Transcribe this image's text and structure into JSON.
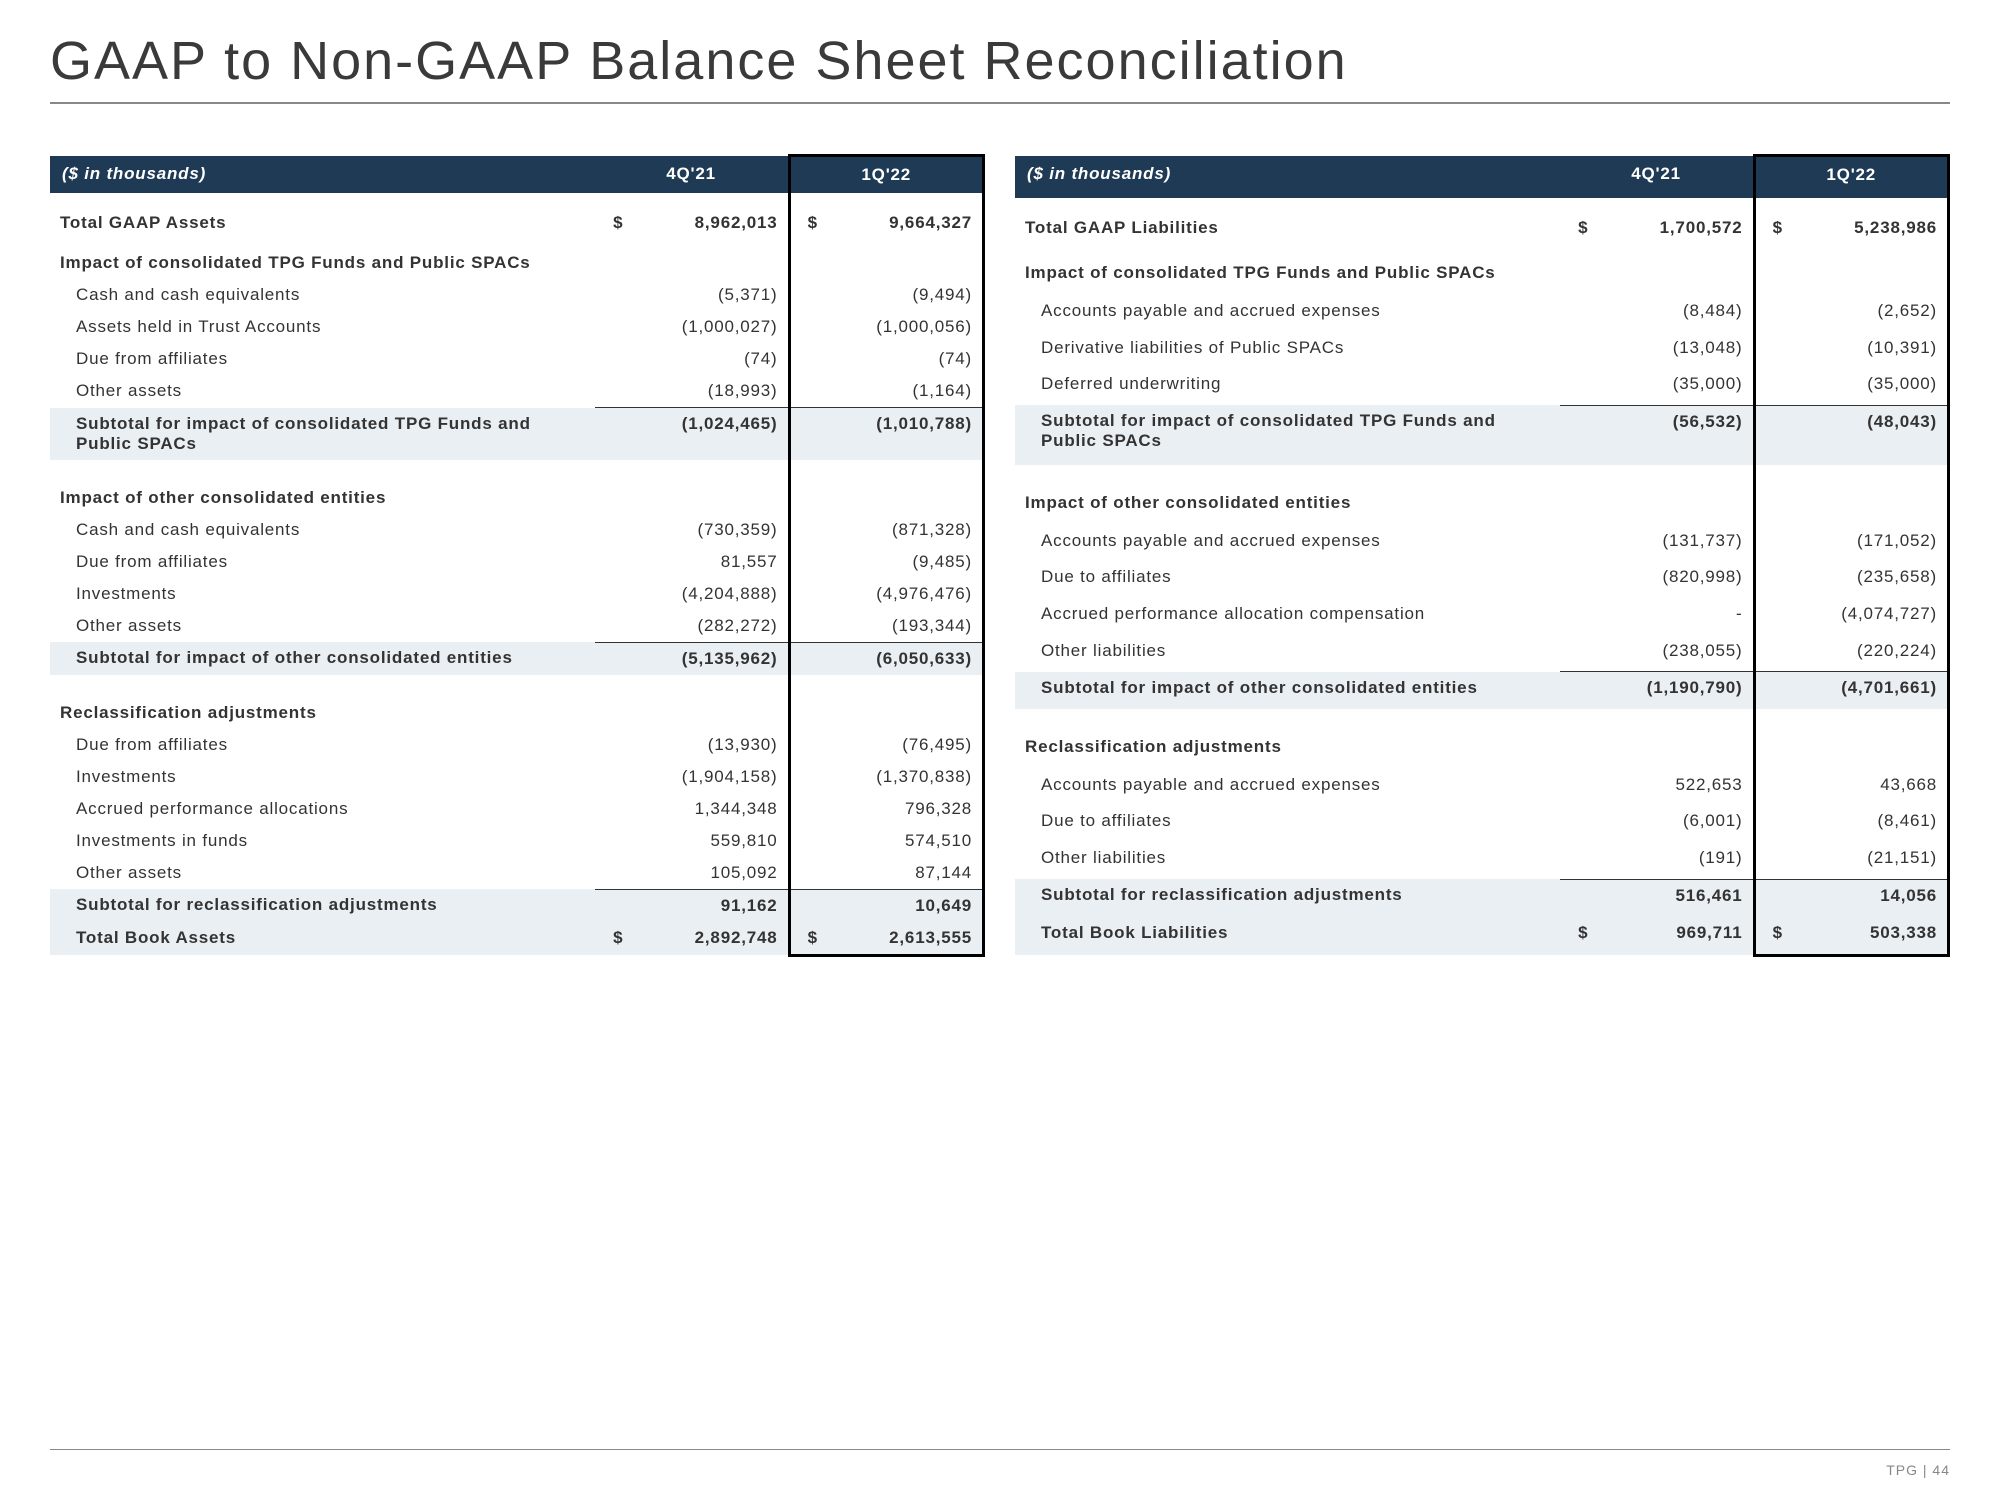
{
  "title": "GAAP to Non-GAAP Balance Sheet Reconciliation",
  "footer": "TPG | 44",
  "periods": {
    "p1": "4Q'21",
    "p2": "1Q'22"
  },
  "unit_label": "($ in thousands)",
  "assets": {
    "total_gaap": {
      "label": "Total GAAP Assets",
      "p1": "8,962,013",
      "p2": "9,664,327"
    },
    "sec1": {
      "title": "Impact of consolidated TPG Funds and Public SPACs",
      "rows": [
        {
          "label": "Cash and cash equivalents",
          "p1": "(5,371)",
          "p2": "(9,494)"
        },
        {
          "label": "Assets held in Trust Accounts",
          "p1": "(1,000,027)",
          "p2": "(1,000,056)"
        },
        {
          "label": "Due from affiliates",
          "p1": "(74)",
          "p2": "(74)"
        },
        {
          "label": "Other assets",
          "p1": "(18,993)",
          "p2": "(1,164)"
        }
      ],
      "subtotal": {
        "label": "Subtotal for impact of consolidated TPG Funds and Public SPACs",
        "p1": "(1,024,465)",
        "p2": "(1,010,788)"
      }
    },
    "sec2": {
      "title": "Impact of other consolidated entities",
      "rows": [
        {
          "label": "Cash and cash equivalents",
          "p1": "(730,359)",
          "p2": "(871,328)"
        },
        {
          "label": "Due from affiliates",
          "p1": "81,557",
          "p2": "(9,485)"
        },
        {
          "label": "Investments",
          "p1": "(4,204,888)",
          "p2": "(4,976,476)"
        },
        {
          "label": "Other assets",
          "p1": "(282,272)",
          "p2": "(193,344)"
        }
      ],
      "subtotal": {
        "label": "Subtotal for impact of other consolidated entities",
        "p1": "(5,135,962)",
        "p2": "(6,050,633)"
      }
    },
    "sec3": {
      "title": "Reclassification adjustments",
      "rows": [
        {
          "label": "Due from affiliates",
          "p1": "(13,930)",
          "p2": "(76,495)"
        },
        {
          "label": "Investments",
          "p1": "(1,904,158)",
          "p2": "(1,370,838)"
        },
        {
          "label": "Accrued performance allocations",
          "p1": "1,344,348",
          "p2": "796,328"
        },
        {
          "label": "Investments in funds",
          "p1": "559,810",
          "p2": "574,510"
        },
        {
          "label": "Other assets",
          "p1": "105,092",
          "p2": "87,144"
        }
      ],
      "subtotal": {
        "label": "Subtotal for reclassification adjustments",
        "p1": "91,162",
        "p2": "10,649"
      }
    },
    "total_book": {
      "label": "Total Book Assets",
      "p1": "2,892,748",
      "p2": "2,613,555"
    }
  },
  "liab": {
    "total_gaap": {
      "label": "Total GAAP Liabilities",
      "p1": "1,700,572",
      "p2": "5,238,986"
    },
    "sec1": {
      "title": "Impact of consolidated TPG Funds and Public SPACs",
      "rows": [
        {
          "label": "Accounts payable and accrued expenses",
          "p1": "(8,484)",
          "p2": "(2,652)"
        },
        {
          "label": "Derivative liabilities of Public SPACs",
          "p1": "(13,048)",
          "p2": "(10,391)"
        },
        {
          "label": "Deferred underwriting",
          "p1": "(35,000)",
          "p2": "(35,000)"
        }
      ],
      "subtotal": {
        "label": "Subtotal for impact of consolidated TPG Funds and Public SPACs",
        "p1": "(56,532)",
        "p2": "(48,043)"
      }
    },
    "sec2": {
      "title": "Impact of other consolidated entities",
      "rows": [
        {
          "label": "Accounts payable and accrued expenses",
          "p1": "(131,737)",
          "p2": "(171,052)"
        },
        {
          "label": "Due to affiliates",
          "p1": "(820,998)",
          "p2": "(235,658)"
        },
        {
          "label": "Accrued performance allocation compensation",
          "p1": "-",
          "p2": "(4,074,727)"
        },
        {
          "label": "Other liabilities",
          "p1": "(238,055)",
          "p2": "(220,224)"
        }
      ],
      "subtotal": {
        "label": "Subtotal for impact of other consolidated entities",
        "p1": "(1,190,790)",
        "p2": "(4,701,661)"
      }
    },
    "sec3": {
      "title": "Reclassification adjustments",
      "rows": [
        {
          "label": "Accounts payable and accrued expenses",
          "p1": "522,653",
          "p2": "43,668"
        },
        {
          "label": "Due to affiliates",
          "p1": "(6,001)",
          "p2": "(8,461)"
        },
        {
          "label": "Other liabilities",
          "p1": "(191)",
          "p2": "(21,151)"
        }
      ],
      "subtotal": {
        "label": "Subtotal for reclassification adjustments",
        "p1": "516,461",
        "p2": "14,056"
      }
    },
    "total_book": {
      "label": "Total Book Liabilities",
      "p1": "969,711",
      "p2": "503,338"
    }
  }
}
